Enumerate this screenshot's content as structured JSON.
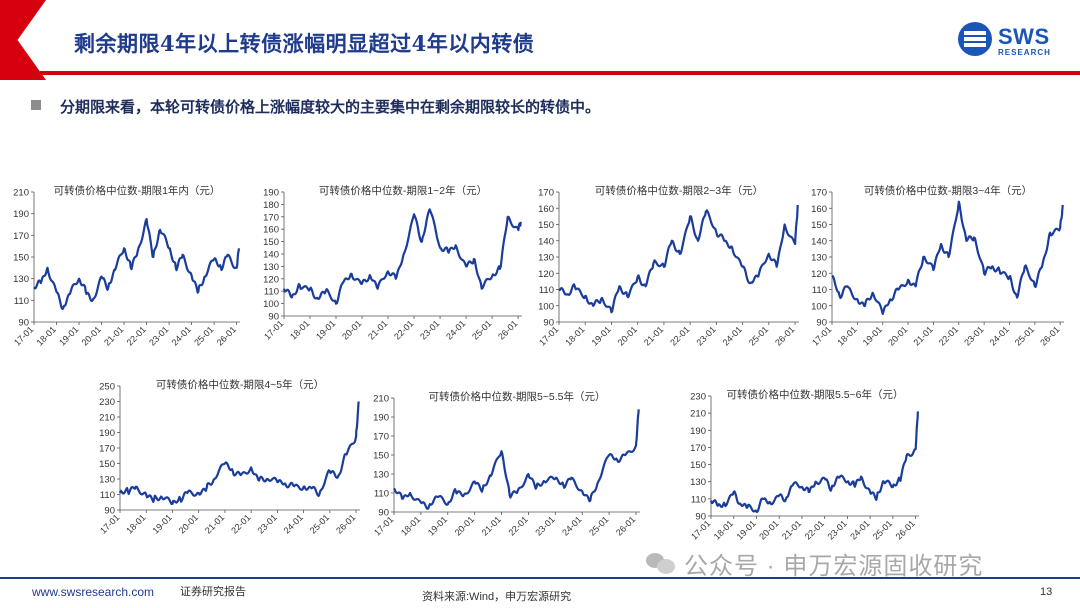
{
  "header": {
    "title": "剩余期限4年以上转债涨幅明显超过4年以内转债",
    "logo_text": "SWS",
    "logo_sub": "RESEARCH"
  },
  "bullet": "分期限来看，本轮可转债价格上涨幅度较大的主要集中在剩余期限较长的转债中。",
  "footer": {
    "url": "www.swsresearch.com",
    "report_type": "证券研究报告",
    "source": "资料来源:Wind，申万宏源研究",
    "page": "13",
    "watermark": "公众号 · 申万宏源固收研究"
  },
  "colors": {
    "line": "#1a3d9c",
    "accent_red": "#d7000f",
    "navy": "#1f3b8c"
  },
  "chart_data": [
    {
      "type": "line",
      "title": "可转债价格中位数-期限1年内（元）",
      "x_ticks": [
        "17-01",
        "18-01",
        "19-01",
        "20-01",
        "21-01",
        "22-01",
        "23-01",
        "24-01",
        "25-01",
        "26-01"
      ],
      "y_ticks": [
        90,
        110,
        130,
        150,
        170,
        190,
        210
      ],
      "ylim": [
        90,
        210
      ],
      "x": [
        17.0,
        17.3,
        17.6,
        18.0,
        18.3,
        18.6,
        19.0,
        19.3,
        19.6,
        20.0,
        20.3,
        20.6,
        21.0,
        21.3,
        21.6,
        22.0,
        22.3,
        22.6,
        23.0,
        23.3,
        23.6,
        24.0,
        24.3,
        24.6,
        25.0,
        25.3,
        25.6,
        26.0,
        26.1
      ],
      "values": [
        122,
        126,
        140,
        118,
        103,
        116,
        130,
        118,
        110,
        132,
        122,
        138,
        158,
        140,
        155,
        185,
        150,
        175,
        158,
        140,
        152,
        133,
        118,
        132,
        148,
        140,
        152,
        140,
        158
      ]
    },
    {
      "type": "line",
      "title": "可转债价格中位数-期限1~2年（元）",
      "x_ticks": [
        "17-01",
        "18-01",
        "19-01",
        "20-01",
        "21-01",
        "22-01",
        "23-01",
        "24-01",
        "25-01",
        "26-01"
      ],
      "y_ticks": [
        90,
        100,
        110,
        120,
        130,
        140,
        150,
        160,
        170,
        180,
        190
      ],
      "ylim": [
        90,
        190
      ],
      "x": [
        17.0,
        17.3,
        17.6,
        18.0,
        18.3,
        18.6,
        19.0,
        19.3,
        19.6,
        20.0,
        20.3,
        20.6,
        21.0,
        21.3,
        21.6,
        22.0,
        22.3,
        22.6,
        23.0,
        23.3,
        23.6,
        24.0,
        24.3,
        24.6,
        25.0,
        25.3,
        25.6,
        26.0,
        26.1
      ],
      "values": [
        112,
        105,
        115,
        112,
        104,
        110,
        100,
        118,
        124,
        116,
        123,
        112,
        126,
        120,
        140,
        172,
        150,
        176,
        145,
        142,
        147,
        130,
        136,
        112,
        122,
        128,
        170,
        160,
        166
      ]
    },
    {
      "type": "line",
      "title": "可转债价格中位数-期限2~3年（元）",
      "x_ticks": [
        "17-01",
        "18-01",
        "19-01",
        "20-01",
        "21-01",
        "22-01",
        "23-01",
        "24-01",
        "25-01",
        "26-01"
      ],
      "y_ticks": [
        90,
        100,
        110,
        120,
        130,
        140,
        150,
        160,
        170
      ],
      "ylim": [
        90,
        170
      ],
      "x": [
        17.0,
        17.3,
        17.6,
        18.0,
        18.3,
        18.6,
        19.0,
        19.3,
        19.6,
        20.0,
        20.3,
        20.6,
        21.0,
        21.3,
        21.6,
        22.0,
        22.3,
        22.6,
        23.0,
        23.3,
        23.6,
        24.0,
        24.3,
        24.6,
        25.0,
        25.3,
        25.6,
        26.0,
        26.1
      ],
      "values": [
        110,
        107,
        112,
        106,
        100,
        104,
        96,
        112,
        106,
        118,
        112,
        126,
        124,
        140,
        132,
        155,
        140,
        158,
        145,
        140,
        136,
        124,
        114,
        118,
        132,
        124,
        150,
        138,
        162
      ]
    },
    {
      "type": "line",
      "title": "可转债价格中位数-期限3~4年（元）",
      "x_ticks": [
        "17-01",
        "18-01",
        "19-01",
        "20-01",
        "21-01",
        "22-01",
        "23-01",
        "24-01",
        "25-01",
        "26-01"
      ],
      "y_ticks": [
        90,
        100,
        110,
        120,
        130,
        140,
        150,
        160,
        170
      ],
      "ylim": [
        90,
        170
      ],
      "x": [
        17.0,
        17.3,
        17.6,
        18.0,
        18.3,
        18.6,
        19.0,
        19.3,
        19.6,
        20.0,
        20.3,
        20.6,
        21.0,
        21.3,
        21.6,
        22.0,
        22.3,
        22.6,
        23.0,
        23.3,
        23.6,
        24.0,
        24.3,
        24.6,
        25.0,
        25.3,
        25.6,
        26.0,
        26.1
      ],
      "values": [
        118,
        106,
        112,
        104,
        100,
        108,
        95,
        104,
        110,
        116,
        112,
        130,
        122,
        138,
        130,
        164,
        140,
        142,
        120,
        124,
        122,
        118,
        105,
        124,
        112,
        125,
        145,
        148,
        162
      ]
    },
    {
      "type": "line",
      "title": "可转债价格中位数-期限4~5年（元）",
      "x_ticks": [
        "17-01",
        "18-01",
        "19-01",
        "20-01",
        "21-01",
        "22-01",
        "23-01",
        "24-01",
        "25-01",
        "26-01"
      ],
      "y_ticks": [
        90,
        110,
        130,
        150,
        170,
        190,
        210,
        230,
        250
      ],
      "ylim": [
        90,
        250
      ],
      "x": [
        17.0,
        17.3,
        17.6,
        18.0,
        18.3,
        18.6,
        19.0,
        19.3,
        19.6,
        20.0,
        20.3,
        20.6,
        21.0,
        21.3,
        21.6,
        22.0,
        22.3,
        22.6,
        23.0,
        23.3,
        23.6,
        24.0,
        24.3,
        24.6,
        25.0,
        25.3,
        25.6,
        26.0,
        26.1
      ],
      "values": [
        112,
        114,
        120,
        110,
        104,
        106,
        98,
        104,
        114,
        112,
        118,
        130,
        150,
        140,
        135,
        145,
        128,
        130,
        126,
        124,
        122,
        120,
        118,
        110,
        140,
        132,
        162,
        185,
        230
      ]
    },
    {
      "type": "line",
      "title": "可转债价格中位数-期限5~5.5年（元）",
      "x_ticks": [
        "17-01",
        "18-01",
        "19-01",
        "20-01",
        "21-01",
        "22-01",
        "23-01",
        "24-01",
        "25-01",
        "26-01"
      ],
      "y_ticks": [
        90,
        110,
        130,
        150,
        170,
        190,
        210
      ],
      "ylim": [
        90,
        210
      ],
      "x": [
        17.0,
        17.3,
        17.6,
        18.0,
        18.3,
        18.6,
        19.0,
        19.3,
        19.6,
        20.0,
        20.3,
        20.6,
        21.0,
        21.3,
        21.6,
        22.0,
        22.3,
        22.6,
        23.0,
        23.3,
        23.6,
        24.0,
        24.3,
        24.6,
        25.0,
        25.3,
        25.6,
        26.0,
        26.1
      ],
      "values": [
        115,
        104,
        110,
        100,
        96,
        106,
        98,
        112,
        108,
        122,
        114,
        128,
        154,
        108,
        112,
        130,
        116,
        122,
        125,
        118,
        126,
        112,
        102,
        122,
        150,
        145,
        150,
        160,
        198
      ]
    },
    {
      "type": "line",
      "title": "可转债价格中位数-期限5.5~6年（元）",
      "x_ticks": [
        "17-01",
        "18-01",
        "19-01",
        "20-01",
        "21-01",
        "22-01",
        "23-01",
        "24-01",
        "25-01",
        "26-01"
      ],
      "y_ticks": [
        90,
        110,
        130,
        150,
        170,
        190,
        210,
        230
      ],
      "ylim": [
        90,
        230
      ],
      "x": [
        17.0,
        17.3,
        17.6,
        18.0,
        18.3,
        18.6,
        19.0,
        19.3,
        19.6,
        20.0,
        20.3,
        20.6,
        21.0,
        21.3,
        21.6,
        22.0,
        22.3,
        22.6,
        23.0,
        23.3,
        23.6,
        24.0,
        24.3,
        24.6,
        25.0,
        25.3,
        25.6,
        26.0,
        26.1
      ],
      "values": [
        108,
        102,
        104,
        118,
        104,
        100,
        95,
        110,
        106,
        114,
        110,
        126,
        124,
        118,
        130,
        134,
        122,
        135,
        130,
        126,
        136,
        118,
        112,
        130,
        124,
        132,
        160,
        168,
        212
      ]
    }
  ]
}
